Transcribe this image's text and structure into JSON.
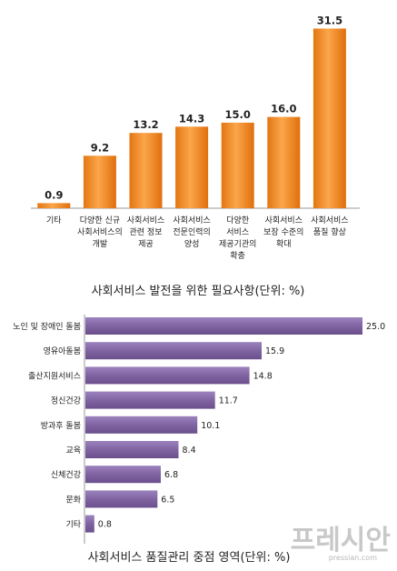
{
  "chart_data": [
    {
      "type": "bar",
      "orientation": "vertical",
      "title": "사회서비스 발전을 위한 필요사항(단위: %)",
      "categories": [
        [
          "기타"
        ],
        [
          "다양한 신규",
          "사회서비스의",
          "개발"
        ],
        [
          "사회서비스",
          "관련 정보",
          "제공"
        ],
        [
          "사회서비스",
          "전문인력의",
          "양성"
        ],
        [
          "다양한",
          "서비스",
          "제공기관의",
          "확충"
        ],
        [
          "사회서비스",
          "보장 수준의",
          "확대"
        ],
        [
          "사회서비스",
          "품질 향상"
        ]
      ],
      "values": [
        0.9,
        9.2,
        13.2,
        14.3,
        15.0,
        16.0,
        31.5
      ],
      "value_labels": [
        "0.9",
        "9.2",
        "13.2",
        "14.3",
        "15.0",
        "16.0",
        "31.5"
      ],
      "ylim": [
        0,
        33
      ],
      "bar_color": "#f08a1e",
      "grid": false
    },
    {
      "type": "bar",
      "orientation": "horizontal",
      "title": "사회서비스 품질관리 중점 영역(단위: %)",
      "categories": [
        "노인 및 장애인 돌봄",
        "영유아돌봄",
        "출산지원서비스",
        "정신건강",
        "방과후 돌봄",
        "교육",
        "신체건강",
        "문화",
        "기타"
      ],
      "values": [
        25.0,
        15.9,
        14.8,
        11.7,
        10.1,
        8.4,
        6.8,
        6.5,
        0.8
      ],
      "value_labels": [
        "25.0",
        "15.9",
        "14.8",
        "11.7",
        "10.1",
        "8.4",
        "6.8",
        "6.5",
        "0.8"
      ],
      "xlim": [
        0,
        25
      ],
      "bar_color": "#8064a2",
      "grid": false
    }
  ],
  "watermark": {
    "text": "프레시안",
    "sub": "pressian.com"
  }
}
